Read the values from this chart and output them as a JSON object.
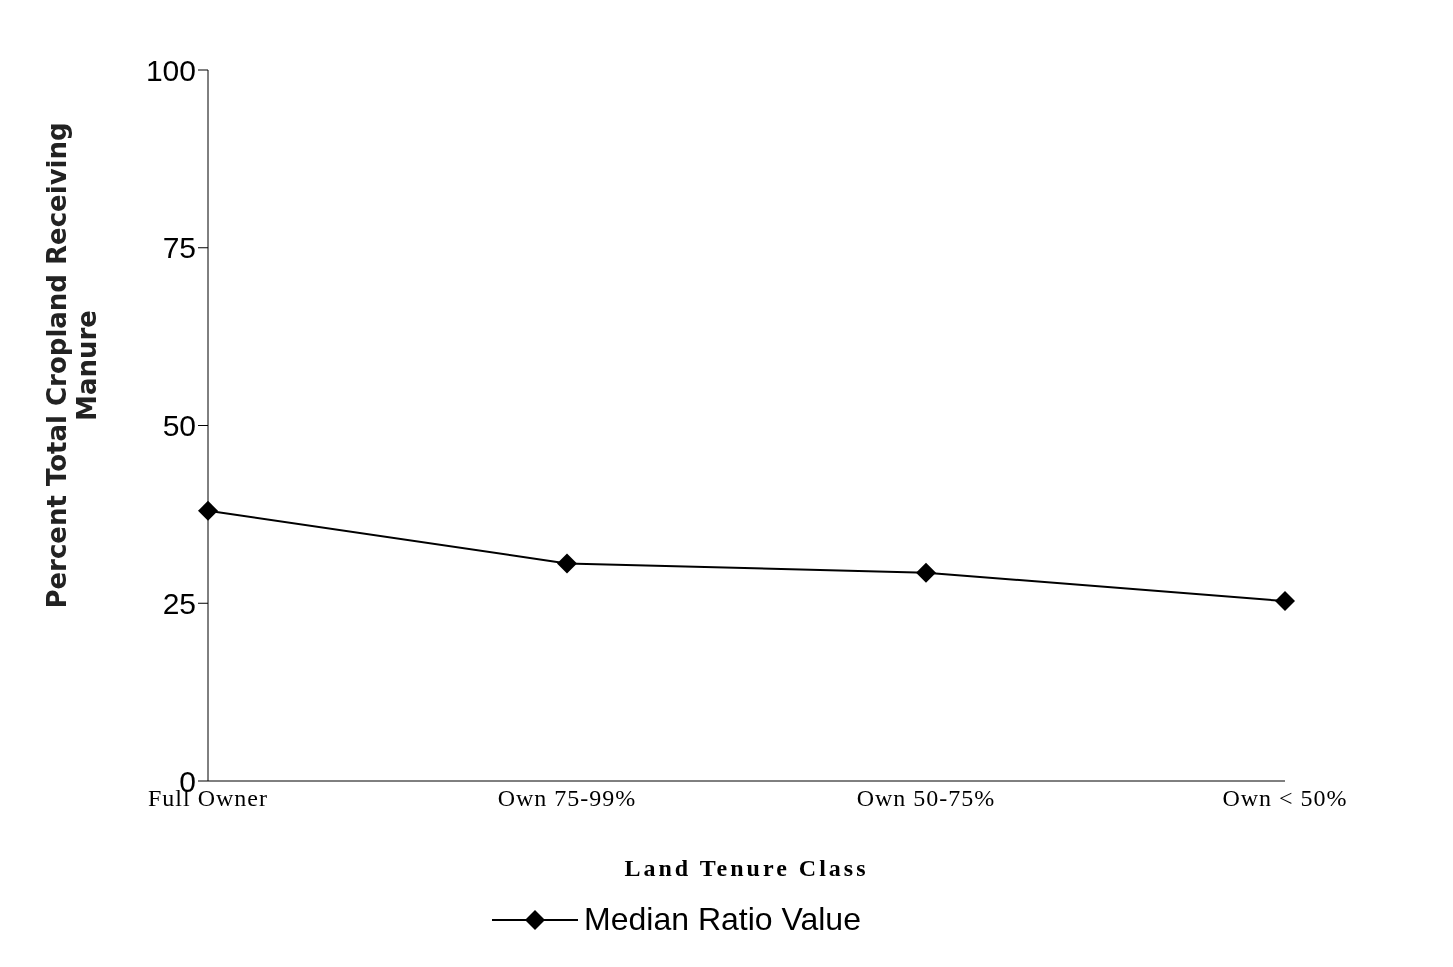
{
  "chart_data": {
    "type": "line",
    "xlabel": "Land Tenure Class",
    "ylabel": "Percent Total Cropland Receiving Manure",
    "categories": [
      "Full Owner",
      "Own 75-99%",
      "Own 50-75%",
      "Own < 50%"
    ],
    "series": [
      {
        "name": "Median Ratio Value",
        "color": "#000000",
        "values": [
          38,
          30.6,
          29.3,
          25.3
        ]
      }
    ],
    "ylim": [
      0,
      100
    ],
    "yticks": [
      0,
      25,
      50,
      75,
      100
    ],
    "grid": false,
    "legend": "bottom",
    "marker": "diamond",
    "line_style": "solid"
  }
}
